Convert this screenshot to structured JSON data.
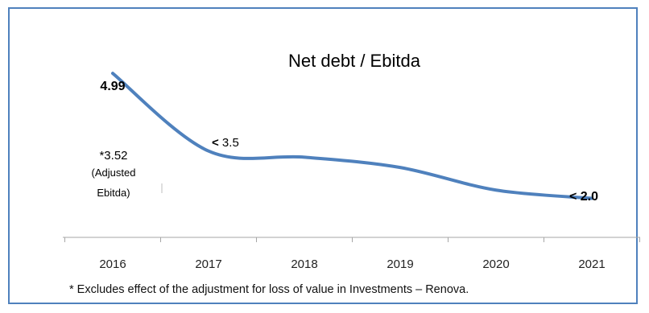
{
  "chart_data": {
    "type": "line",
    "title": "Net debt / Ebitda",
    "xlabel": "",
    "ylabel": "",
    "categories": [
      "2016",
      "2017",
      "2018",
      "2019",
      "2020",
      "2021"
    ],
    "values": [
      4.99,
      3.1,
      2.95,
      2.7,
      2.15,
      1.95
    ],
    "ylim": [
      1.0,
      5.6
    ],
    "line_color": "#4f81bd",
    "grid": false,
    "legend": "none",
    "data_labels": {
      "first": "4.99",
      "second_prefix": "<",
      "second": " 3.5",
      "last": "< 2.0"
    },
    "annotation": {
      "value": "*3.52",
      "line1": "(Adjusted",
      "line2": "Ebitda)"
    }
  },
  "footnote": "* Excludes effect of the adjustment for loss of value in Investments – Renova."
}
